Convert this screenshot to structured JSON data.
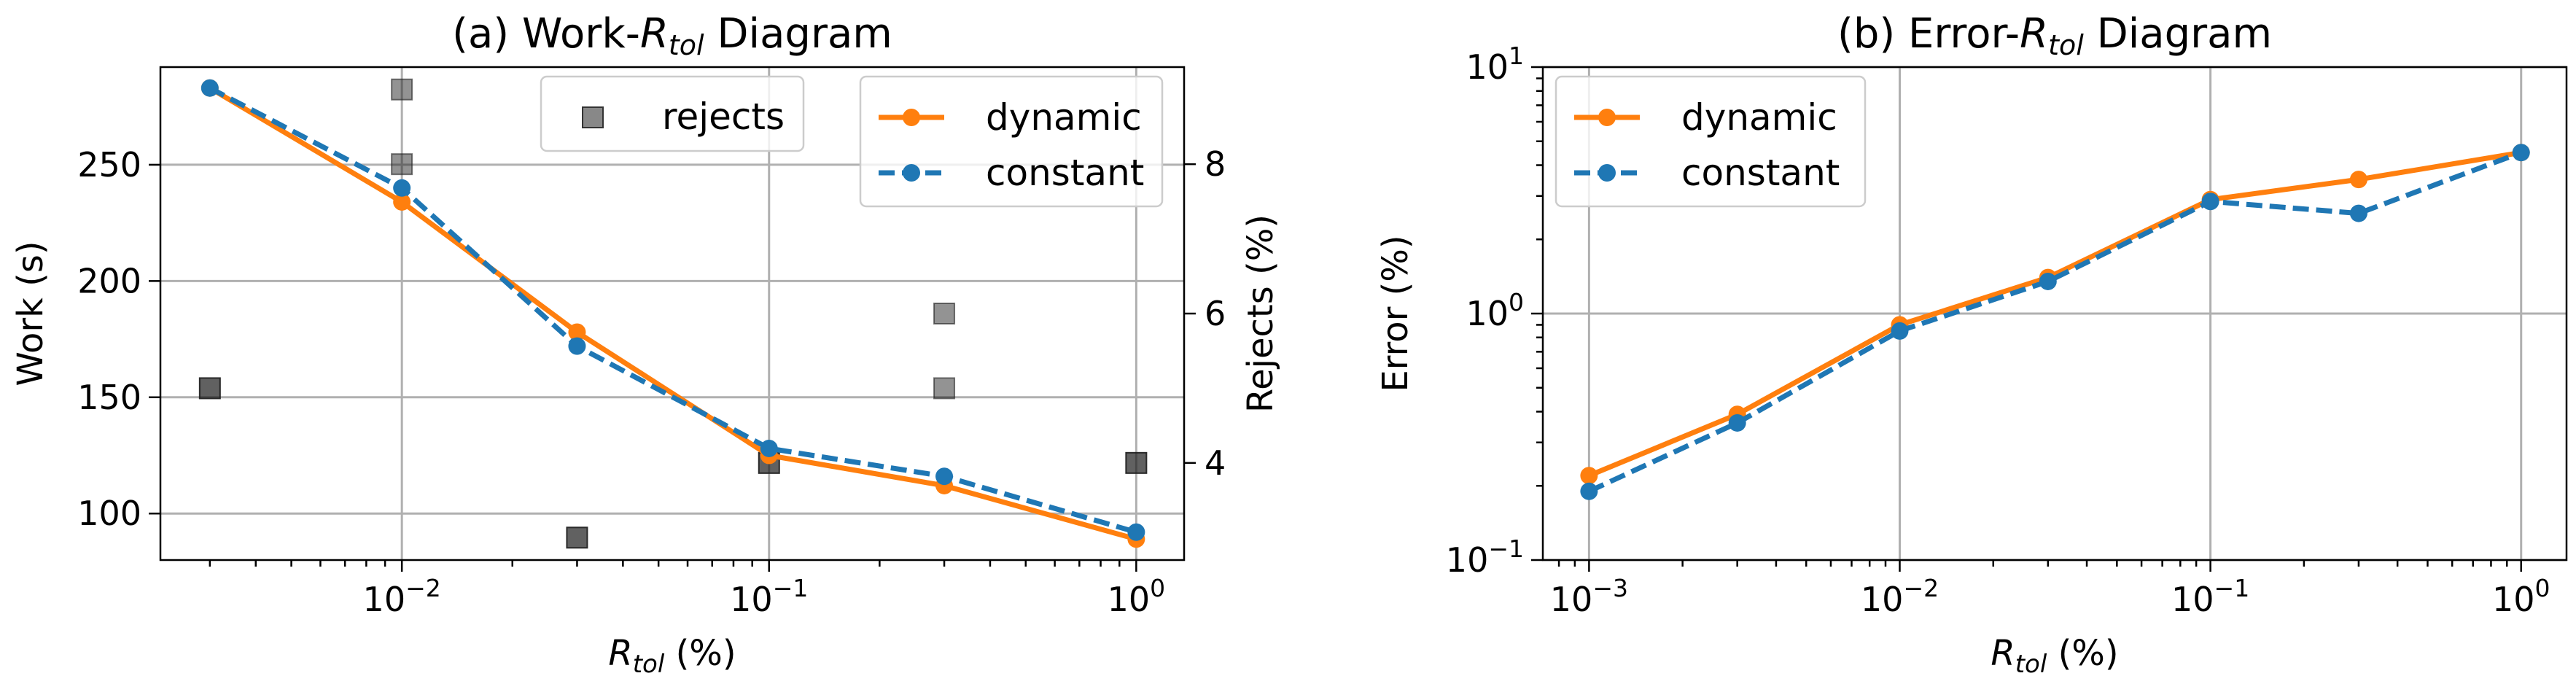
{
  "colors": {
    "dynamic": "#ff7f0e",
    "constant": "#1f77b4",
    "rejects": "#555555"
  },
  "chart_data": [
    {
      "type": "line",
      "title_prefix": "(a) Work-",
      "title_symbol": "R",
      "title_sub": "tol",
      "title_suffix": " Diagram",
      "xlabel_symbol": "R",
      "xlabel_sub": "tol",
      "xlabel_suffix": " (%)",
      "ylabel": "Work (s)",
      "y2label": "Rejects (%)",
      "xscale": "log",
      "xlim": [
        0.0022,
        1.35
      ],
      "ylim": [
        80,
        292
      ],
      "y2lim": [
        2.7,
        9.3
      ],
      "xticks": [
        {
          "value": 0.01,
          "label": "10",
          "exp": "−2"
        },
        {
          "value": 0.1,
          "label": "10",
          "exp": "−1"
        },
        {
          "value": 1,
          "label": "10",
          "exp": "0"
        }
      ],
      "yticks": [
        {
          "value": 100,
          "label": "100"
        },
        {
          "value": 150,
          "label": "150"
        },
        {
          "value": 200,
          "label": "200"
        },
        {
          "value": 250,
          "label": "250"
        }
      ],
      "y2ticks": [
        {
          "value": 4,
          "label": "4"
        },
        {
          "value": 6,
          "label": "6"
        },
        {
          "value": 8,
          "label": "8"
        }
      ],
      "x": [
        0.003,
        0.01,
        0.03,
        0.1,
        0.3,
        1.0
      ],
      "series": [
        {
          "name": "dynamic",
          "values": [
            283,
            234,
            178,
            125,
            112,
            89
          ]
        },
        {
          "name": "constant",
          "values": [
            283,
            240,
            172,
            128,
            116,
            92
          ]
        }
      ],
      "rejects": {
        "name": "rejects",
        "points": [
          {
            "x": 0.003,
            "y": 5,
            "alpha": 0.95
          },
          {
            "x": 0.01,
            "y": 9,
            "alpha": 0.6
          },
          {
            "x": 0.01,
            "y": 8,
            "alpha": 0.6
          },
          {
            "x": 0.03,
            "y": 3,
            "alpha": 0.95
          },
          {
            "x": 0.1,
            "y": 4,
            "alpha": 0.95
          },
          {
            "x": 0.3,
            "y": 6,
            "alpha": 0.6
          },
          {
            "x": 0.3,
            "y": 5,
            "alpha": 0.6
          },
          {
            "x": 1.0,
            "y": 4,
            "alpha": 0.95
          }
        ]
      },
      "legend": [
        "dynamic",
        "constant"
      ],
      "legend_rejects": "rejects"
    },
    {
      "type": "line",
      "title_prefix": "(b) Error-",
      "title_symbol": "R",
      "title_sub": "tol",
      "title_suffix": " Diagram",
      "xlabel_symbol": "R",
      "xlabel_sub": "tol",
      "xlabel_suffix": " (%)",
      "ylabel": "Error (%)",
      "xscale": "log",
      "yscale": "log",
      "xlim": [
        0.00071,
        1.4
      ],
      "ylim": [
        0.1,
        10
      ],
      "xticks": [
        {
          "value": 0.001,
          "label": "10",
          "exp": "−3"
        },
        {
          "value": 0.01,
          "label": "10",
          "exp": "−2"
        },
        {
          "value": 0.1,
          "label": "10",
          "exp": "−1"
        },
        {
          "value": 1,
          "label": "10",
          "exp": "0"
        }
      ],
      "yticks": [
        {
          "value": 0.1,
          "label": "10",
          "exp": "−1"
        },
        {
          "value": 1,
          "label": "10",
          "exp": "0"
        },
        {
          "value": 10,
          "label": "10",
          "exp": "1"
        }
      ],
      "x": [
        0.001,
        0.003,
        0.01,
        0.03,
        0.1,
        0.3,
        1.0
      ],
      "series": [
        {
          "name": "dynamic",
          "values": [
            0.22,
            0.39,
            0.9,
            1.4,
            2.9,
            3.5,
            4.5
          ]
        },
        {
          "name": "constant",
          "values": [
            0.19,
            0.36,
            0.85,
            1.35,
            2.85,
            2.55,
            4.5
          ]
        }
      ],
      "legend": [
        "dynamic",
        "constant"
      ]
    }
  ]
}
